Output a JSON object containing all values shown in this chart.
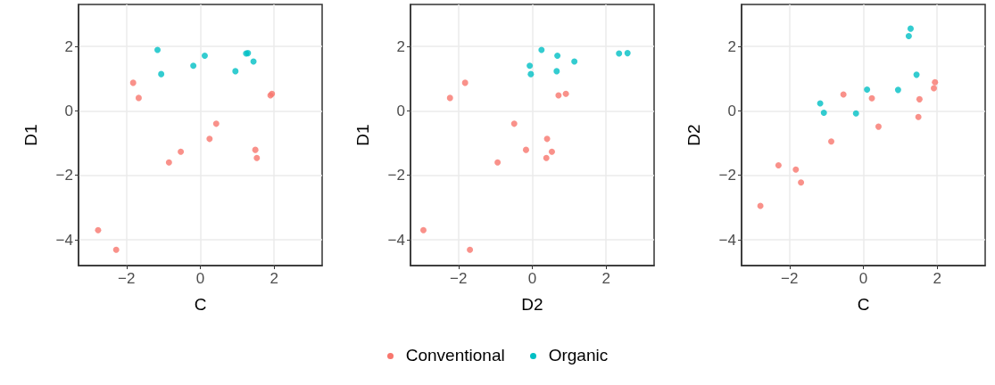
{
  "chart_data": [
    {
      "type": "scatter",
      "xlabel": "C",
      "ylabel": "D1",
      "xlim": [
        -3.3,
        3.3
      ],
      "ylim": [
        -4.8,
        3.3
      ],
      "xticks": [
        -2,
        0,
        2
      ],
      "yticks": [
        -4,
        -2,
        0,
        2
      ],
      "grid": true,
      "legend": "bottom",
      "marker": "circle",
      "series": [
        {
          "name": "Conventional",
          "color": "#f8766d",
          "x": [
            -1.82,
            -1.67,
            -0.85,
            -0.53,
            0.25,
            0.43,
            1.49,
            1.53,
            1.9,
            1.94,
            -2.77,
            -2.28
          ],
          "values": [
            0.87,
            0.4,
            -1.6,
            -1.27,
            -0.87,
            -0.4,
            -1.21,
            -1.46,
            0.48,
            0.53,
            -3.7,
            -4.31
          ]
        },
        {
          "name": "Organic",
          "color": "#00bfc4",
          "x": [
            -1.16,
            -1.06,
            -0.19,
            0.12,
            0.95,
            1.24,
            1.29,
            1.44
          ],
          "values": [
            1.89,
            1.14,
            1.4,
            1.71,
            1.23,
            1.78,
            1.79,
            1.53
          ]
        }
      ]
    },
    {
      "type": "scatter",
      "xlabel": "D2",
      "ylabel": "D1",
      "xlim": [
        -3.3,
        3.3
      ],
      "ylim": [
        -4.8,
        3.3
      ],
      "xticks": [
        -2,
        0,
        2
      ],
      "yticks": [
        -4,
        -2,
        0,
        2
      ],
      "grid": true,
      "marker": "circle",
      "series": [
        {
          "name": "Conventional",
          "color": "#f8766d",
          "x": [
            -2.95,
            -1.69,
            -1.82,
            -2.23,
            -0.94,
            -0.49,
            -0.17,
            0.38,
            0.4,
            0.53,
            0.71,
            0.91
          ],
          "values": [
            -3.7,
            -4.31,
            0.87,
            0.4,
            -1.6,
            -0.4,
            -1.21,
            -1.46,
            -0.87,
            -1.27,
            0.48,
            0.53
          ]
        },
        {
          "name": "Organic",
          "color": "#00bfc4",
          "x": [
            -0.07,
            -0.04,
            0.25,
            0.68,
            0.66,
            1.14,
            2.35,
            2.58
          ],
          "values": [
            1.4,
            1.14,
            1.89,
            1.71,
            1.23,
            1.53,
            1.78,
            1.79
          ]
        }
      ]
    },
    {
      "type": "scatter",
      "xlabel": "C",
      "ylabel": "D2",
      "xlim": [
        -3.3,
        3.3
      ],
      "ylim": [
        -4.8,
        3.3
      ],
      "xticks": [
        -2,
        0,
        2
      ],
      "yticks": [
        -4,
        -2,
        0,
        2
      ],
      "grid": true,
      "marker": "circle",
      "series": [
        {
          "name": "Conventional",
          "color": "#f8766d",
          "x": [
            -2.79,
            -2.3,
            -1.83,
            -1.69,
            -0.87,
            -0.54,
            0.23,
            0.41,
            1.49,
            1.52,
            1.91,
            1.94
          ],
          "values": [
            -2.95,
            -1.69,
            -1.82,
            -2.22,
            -0.95,
            0.51,
            0.39,
            -0.49,
            -0.19,
            0.36,
            0.7,
            0.89
          ]
        },
        {
          "name": "Organic",
          "color": "#00bfc4",
          "x": [
            -1.17,
            -1.07,
            -0.2,
            0.1,
            0.94,
            1.23,
            1.28,
            1.44
          ],
          "values": [
            0.23,
            -0.06,
            -0.08,
            0.66,
            0.65,
            2.32,
            2.55,
            1.12
          ]
        }
      ]
    }
  ]
}
